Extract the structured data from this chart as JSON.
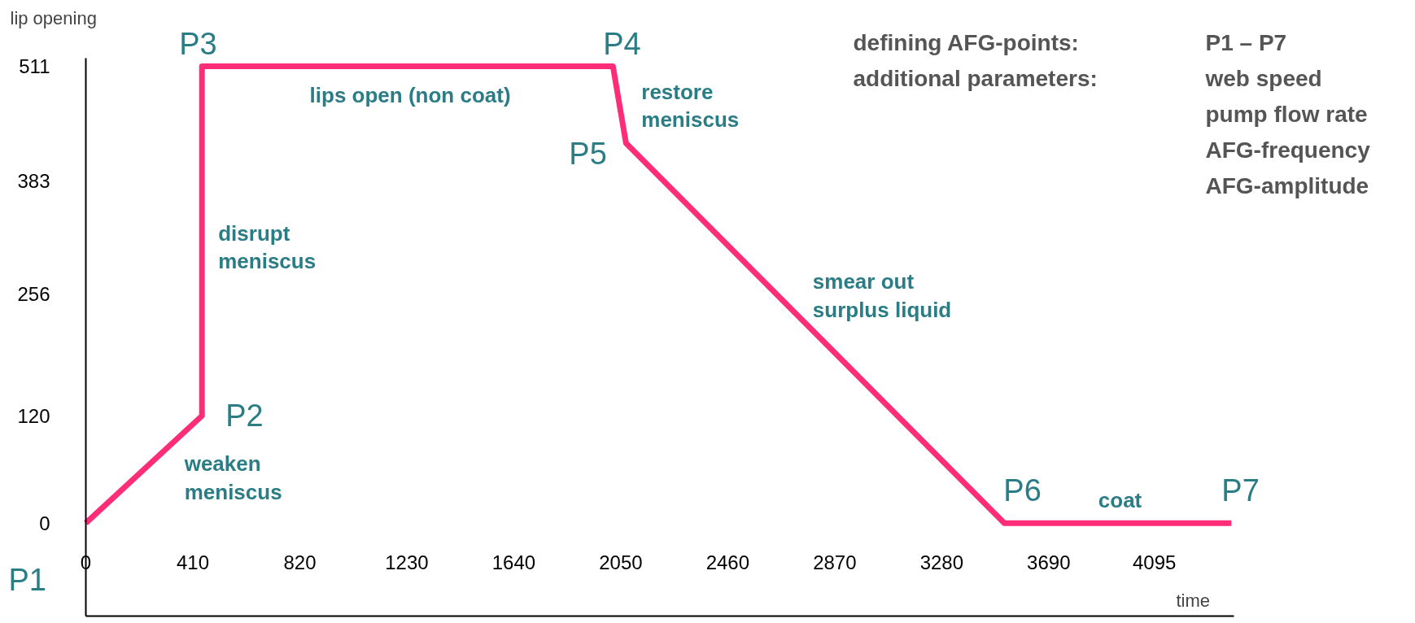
{
  "chart_data": {
    "type": "line",
    "xlabel": "time",
    "ylabel": "lip opening",
    "x": [
      0,
      445,
      445,
      2020,
      2070,
      3520,
      4390
    ],
    "series": [
      {
        "color": "#ff2d78",
        "values": [
          0,
          120,
          511,
          511,
          425,
          0,
          0
        ]
      }
    ],
    "xlim": [
      0,
      4400
    ],
    "ylim": [
      -104,
      520
    ],
    "xticks": [
      0,
      410,
      820,
      1230,
      1640,
      2050,
      2460,
      2870,
      3280,
      3690,
      4095
    ],
    "yticks": [
      0,
      120,
      256,
      383,
      511
    ],
    "marker": "none",
    "line_style": "solid",
    "annotations": [
      {
        "text": "P1",
        "x": 0,
        "y": 0
      },
      {
        "text": "P2",
        "x": 445,
        "y": 120
      },
      {
        "text": "P3",
        "x": 445,
        "y": 511
      },
      {
        "text": "P4",
        "x": 2020,
        "y": 511
      },
      {
        "text": "P5",
        "x": 2070,
        "y": 425
      },
      {
        "text": "P6",
        "x": 3520,
        "y": 0
      },
      {
        "text": "P7",
        "x": 4390,
        "y": 0
      },
      {
        "text": "weaken\nmeniscus",
        "x": 222,
        "y": 60
      },
      {
        "text": "disrupt\nmeniscus",
        "x": 445,
        "y": 315
      },
      {
        "text": "lips open (non coat)",
        "x": 1232,
        "y": 511
      },
      {
        "text": "restore\nmeniscus",
        "x": 2045,
        "y": 468
      },
      {
        "text": "smear out\nsurplus liquid",
        "x": 2795,
        "y": 212
      },
      {
        "text": "coat",
        "x": 3955,
        "y": 0
      },
      "defining AFG-points:",
      "additional parameters:",
      "P1 – P7",
      "web speed",
      "pump flow rate",
      "AFG-frequency",
      "AFG-amplitude"
    ]
  }
}
